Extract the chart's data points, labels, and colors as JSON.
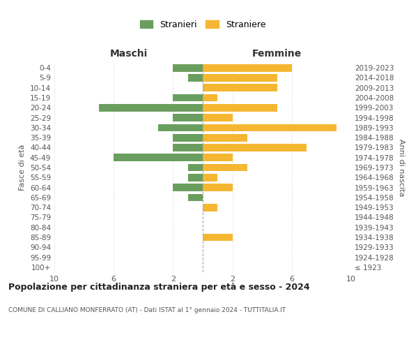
{
  "age_groups": [
    "100+",
    "95-99",
    "90-94",
    "85-89",
    "80-84",
    "75-79",
    "70-74",
    "65-69",
    "60-64",
    "55-59",
    "50-54",
    "45-49",
    "40-44",
    "35-39",
    "30-34",
    "25-29",
    "20-24",
    "15-19",
    "10-14",
    "5-9",
    "0-4"
  ],
  "birth_years": [
    "≤ 1923",
    "1924-1928",
    "1929-1933",
    "1934-1938",
    "1939-1943",
    "1944-1948",
    "1949-1953",
    "1954-1958",
    "1959-1963",
    "1964-1968",
    "1969-1973",
    "1974-1978",
    "1979-1983",
    "1984-1988",
    "1989-1993",
    "1994-1998",
    "1999-2003",
    "2004-2008",
    "2009-2013",
    "2014-2018",
    "2019-2023"
  ],
  "maschi": [
    0,
    0,
    0,
    0,
    0,
    0,
    0,
    1,
    2,
    1,
    1,
    6,
    2,
    2,
    3,
    2,
    7,
    2,
    0,
    1,
    2
  ],
  "femmine": [
    0,
    0,
    0,
    2,
    0,
    0,
    1,
    0,
    2,
    1,
    3,
    2,
    7,
    3,
    9,
    2,
    5,
    1,
    5,
    5,
    6
  ],
  "color_maschi": "#6a9e5e",
  "color_femmine": "#f5b731",
  "title": "Popolazione per cittadinanza straniera per età e sesso - 2024",
  "subtitle": "COMUNE DI CALLIANO MONFERRATO (AT) - Dati ISTAT al 1° gennaio 2024 - TUTTITALIA.IT",
  "legend_maschi": "Stranieri",
  "legend_femmine": "Straniere",
  "xlabel_left": "Maschi",
  "xlabel_right": "Femmine",
  "ylabel_left": "Fasce di età",
  "ylabel_right": "Anni di nascita",
  "xlim": 10,
  "background_color": "#ffffff",
  "grid_color": "#cccccc"
}
